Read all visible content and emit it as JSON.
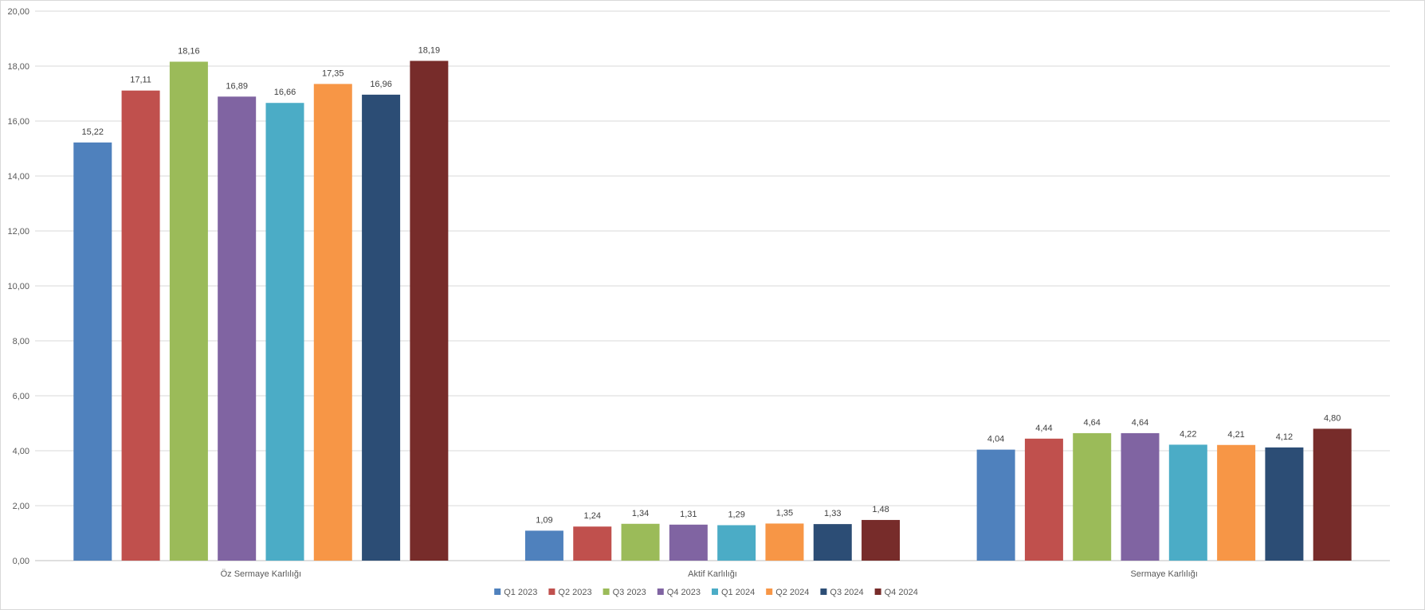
{
  "chart_data": {
    "type": "bar",
    "title": "",
    "xlabel": "",
    "ylabel": "",
    "categories": [
      "Öz Sermaye Karlılığı",
      "Aktif Karlılığı",
      "Sermaye Karlılığı"
    ],
    "ylim": [
      0,
      20
    ],
    "yticks": [
      "0,00",
      "2,00",
      "4,00",
      "6,00",
      "8,00",
      "10,00",
      "12,00",
      "14,00",
      "16,00",
      "18,00",
      "20,00"
    ],
    "grid": true,
    "legend_position": "bottom",
    "series": [
      {
        "name": "Q1 2023",
        "color": "#4f81bd",
        "values": [
          15.22,
          1.09,
          4.04
        ],
        "labels": [
          "15,22",
          "1,09",
          "4,04"
        ]
      },
      {
        "name": "Q2 2023",
        "color": "#c0504d",
        "values": [
          17.11,
          1.24,
          4.44
        ],
        "labels": [
          "17,11",
          "1,24",
          "4,44"
        ]
      },
      {
        "name": "Q3 2023",
        "color": "#9bbb59",
        "values": [
          18.16,
          1.34,
          4.64
        ],
        "labels": [
          "18,16",
          "1,34",
          "4,64"
        ]
      },
      {
        "name": "Q4 2023",
        "color": "#8064a2",
        "values": [
          16.89,
          1.31,
          4.64
        ],
        "labels": [
          "16,89",
          "1,31",
          "4,64"
        ]
      },
      {
        "name": "Q1 2024",
        "color": "#4bacc6",
        "values": [
          16.66,
          1.29,
          4.22
        ],
        "labels": [
          "16,66",
          "1,29",
          "4,22"
        ]
      },
      {
        "name": "Q2 2024",
        "color": "#f79646",
        "values": [
          17.35,
          1.35,
          4.21
        ],
        "labels": [
          "17,35",
          "1,35",
          "4,21"
        ]
      },
      {
        "name": "Q3 2024",
        "color": "#2c4d75",
        "values": [
          16.96,
          1.33,
          4.12
        ],
        "labels": [
          "16,96",
          "1,33",
          "4,12"
        ]
      },
      {
        "name": "Q4 2024",
        "color": "#772c2a",
        "values": [
          18.19,
          1.48,
          4.8
        ],
        "labels": [
          "18,19",
          "1,48",
          "4,80"
        ]
      }
    ]
  }
}
